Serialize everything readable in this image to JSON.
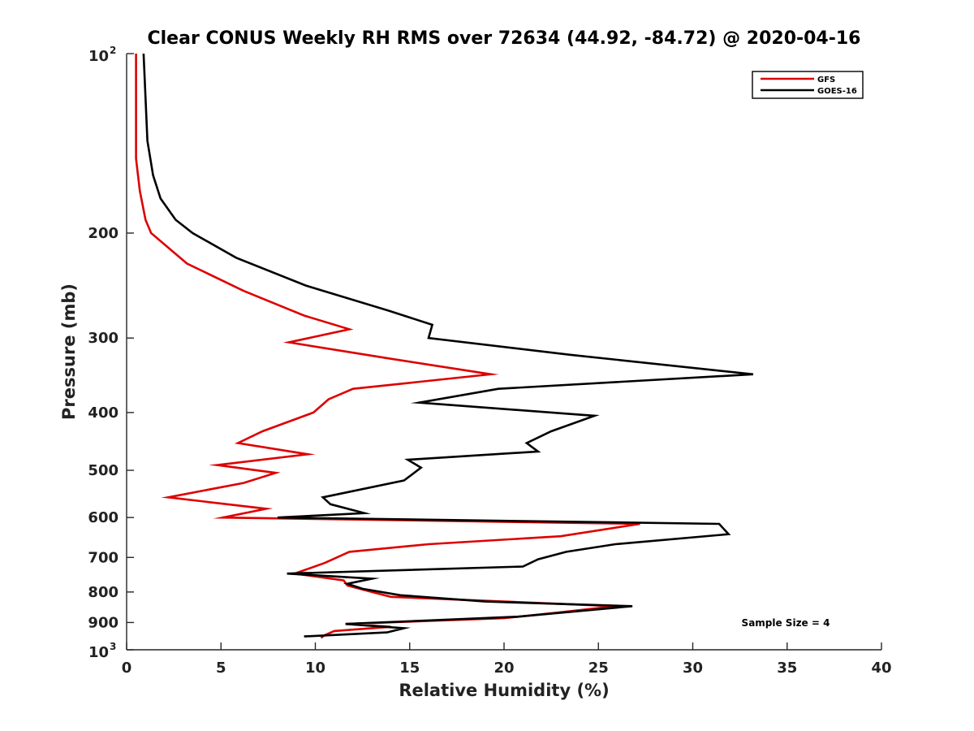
{
  "chart_data": {
    "type": "line",
    "title": "Clear CONUS Weekly RH RMS over 72634 (44.92, -84.72) @ 2020-04-16",
    "xlabel": "Relative Humidity (%)",
    "ylabel": "Pressure (mb)",
    "xlim": [
      0,
      40
    ],
    "ylim": [
      100,
      1000
    ],
    "yscale": "log",
    "y_inverted": true,
    "x_ticks": [
      0,
      5,
      10,
      15,
      20,
      25,
      30,
      35,
      40
    ],
    "x_tick_labels": [
      "0",
      "5",
      "10",
      "15",
      "20",
      "25",
      "30",
      "35",
      "40"
    ],
    "y_ticks": [
      {
        "value": 100,
        "base": "10",
        "sup": "2"
      },
      {
        "value": 200,
        "label": "200"
      },
      {
        "value": 300,
        "label": "300"
      },
      {
        "value": 400,
        "label": "400"
      },
      {
        "value": 500,
        "label": "500"
      },
      {
        "value": 600,
        "label": "600"
      },
      {
        "value": 700,
        "label": "700"
      },
      {
        "value": 800,
        "label": "800"
      },
      {
        "value": 900,
        "label": "900"
      },
      {
        "value": 1000,
        "base": "10",
        "sup": "3"
      }
    ],
    "legend_position": "top-right",
    "annotation": "Sample Size = 4",
    "series": [
      {
        "name": "GFS",
        "color": "#dd0000",
        "points": [
          [
            0.5,
            100
          ],
          [
            0.5,
            150
          ],
          [
            0.7,
            170
          ],
          [
            1.0,
            190
          ],
          [
            1.3,
            200
          ],
          [
            3.2,
            225
          ],
          [
            6.2,
            250
          ],
          [
            9.4,
            275
          ],
          [
            11.8,
            290
          ],
          [
            8.6,
            305
          ],
          [
            14.0,
            325
          ],
          [
            19.3,
            345
          ],
          [
            12.0,
            365
          ],
          [
            10.7,
            380
          ],
          [
            9.9,
            400
          ],
          [
            7.2,
            430
          ],
          [
            5.9,
            450
          ],
          [
            9.6,
            470
          ],
          [
            4.8,
            490
          ],
          [
            7.9,
            505
          ],
          [
            6.2,
            525
          ],
          [
            2.2,
            555
          ],
          [
            7.4,
            580
          ],
          [
            5.1,
            600
          ],
          [
            27.2,
            615
          ],
          [
            23.0,
            645
          ],
          [
            16.0,
            665
          ],
          [
            11.8,
            685
          ],
          [
            10.5,
            715
          ],
          [
            8.9,
            745
          ],
          [
            11.5,
            765
          ],
          [
            11.7,
            780
          ],
          [
            13.0,
            800
          ],
          [
            14.0,
            815
          ],
          [
            25.9,
            845
          ],
          [
            23.0,
            865
          ],
          [
            20.0,
            885
          ],
          [
            11.6,
            905
          ],
          [
            14.0,
            915
          ],
          [
            11.0,
            930
          ],
          [
            10.5,
            945
          ],
          [
            10.3,
            955
          ]
        ]
      },
      {
        "name": "GOES-16",
        "color": "#000000",
        "points": [
          [
            0.9,
            100
          ],
          [
            1.1,
            140
          ],
          [
            1.4,
            160
          ],
          [
            1.8,
            175
          ],
          [
            2.6,
            190
          ],
          [
            3.5,
            200
          ],
          [
            5.8,
            220
          ],
          [
            9.5,
            245
          ],
          [
            13.9,
            270
          ],
          [
            16.2,
            285
          ],
          [
            16.0,
            300
          ],
          [
            23.5,
            320
          ],
          [
            33.2,
            345
          ],
          [
            19.7,
            365
          ],
          [
            15.5,
            385
          ],
          [
            24.8,
            405
          ],
          [
            22.5,
            430
          ],
          [
            21.2,
            450
          ],
          [
            21.8,
            465
          ],
          [
            14.9,
            480
          ],
          [
            15.6,
            495
          ],
          [
            14.7,
            520
          ],
          [
            10.4,
            555
          ],
          [
            10.8,
            570
          ],
          [
            12.6,
            590
          ],
          [
            8.0,
            600
          ],
          [
            31.4,
            615
          ],
          [
            31.9,
            640
          ],
          [
            25.9,
            665
          ],
          [
            23.3,
            685
          ],
          [
            21.8,
            705
          ],
          [
            21.0,
            725
          ],
          [
            8.5,
            745
          ],
          [
            13.0,
            760
          ],
          [
            11.7,
            775
          ],
          [
            12.5,
            790
          ],
          [
            14.5,
            810
          ],
          [
            19.0,
            830
          ],
          [
            26.8,
            845
          ],
          [
            20.7,
            880
          ],
          [
            11.6,
            905
          ],
          [
            14.7,
            920
          ],
          [
            13.8,
            935
          ],
          [
            9.4,
            950
          ]
        ]
      }
    ]
  }
}
